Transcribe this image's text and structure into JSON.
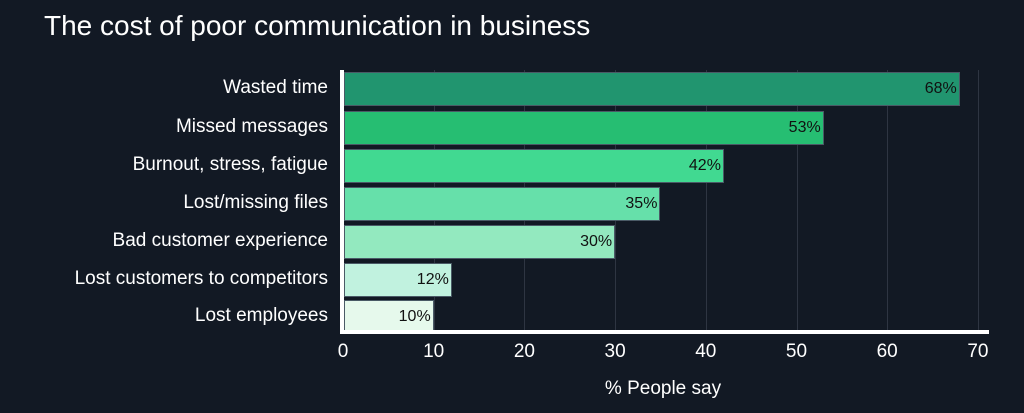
{
  "chart_data": {
    "type": "bar",
    "orientation": "horizontal",
    "title": "The cost of poor communication in business",
    "xlabel": "% People say",
    "ylabel": "",
    "xlim": [
      0,
      70
    ],
    "xticks": [
      "0",
      "10",
      "20",
      "30",
      "40",
      "50",
      "60",
      "70"
    ],
    "grid": true,
    "categories": [
      "Wasted time",
      "Missed messages",
      "Burnout, stress, fatigue",
      "Lost/missing files",
      "Bad customer experience",
      "Lost customers to competitors",
      "Lost employees"
    ],
    "values": [
      68,
      53,
      42,
      35,
      30,
      12,
      10
    ],
    "labels": [
      "68%",
      "53%",
      "42%",
      "35%",
      "30%",
      "12%",
      "10%"
    ],
    "colors": [
      "#21956f",
      "#26be72",
      "#41d991",
      "#66e0aa",
      "#93e9bf",
      "#c1f2df",
      "#e6f9ec"
    ]
  }
}
